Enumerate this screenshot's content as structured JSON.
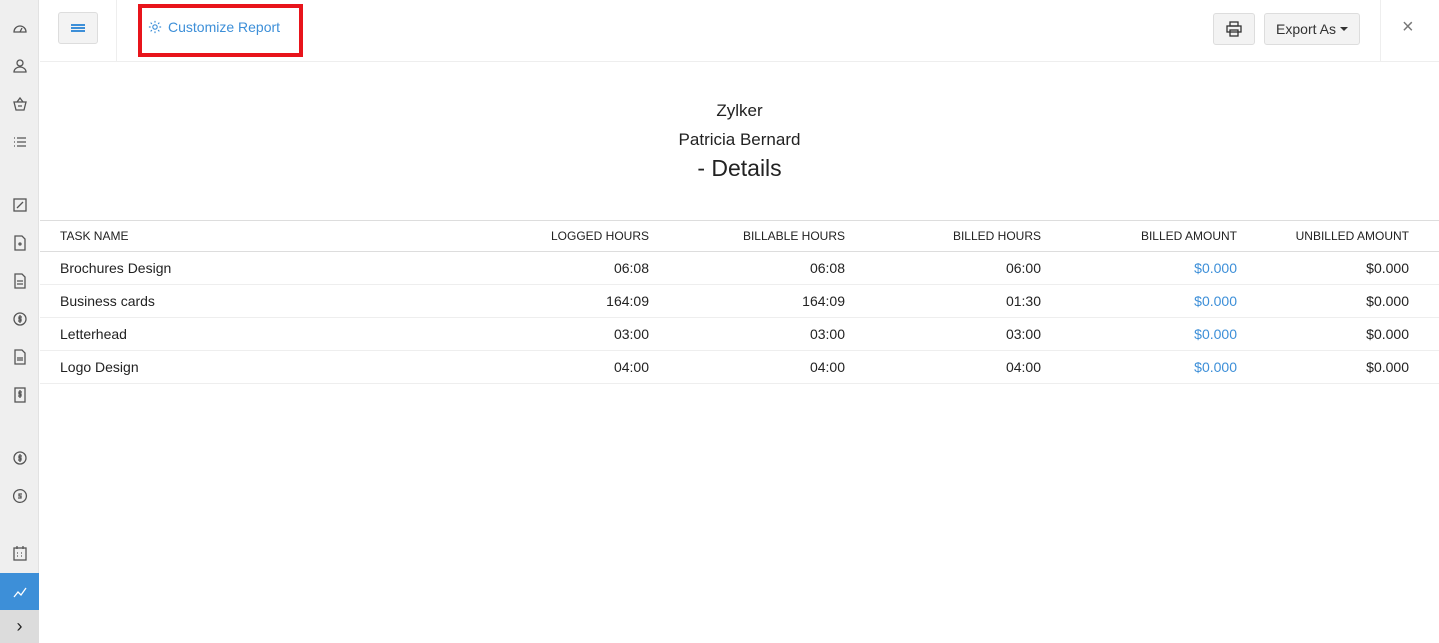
{
  "sidebar": {
    "icons": [
      "dashboard-icon",
      "contacts-icon",
      "items-icon",
      "list-icon",
      "quotes-icon",
      "sales-order-icon",
      "invoice-icon",
      "payments-received-icon",
      "recurring-invoice-icon",
      "credit-notes-icon",
      "expenses-icon",
      "recurring-expenses-icon",
      "timesheet-icon",
      "reports-icon"
    ],
    "active": "reports-icon",
    "accent": "#3d8fd8"
  },
  "toolbar": {
    "customize_label": "Customize Report",
    "export_label": "Export As",
    "close_label": "×"
  },
  "report": {
    "organization": "Zylker",
    "customer": "Patricia Bernard",
    "title": "- Details"
  },
  "table": {
    "columns": [
      "TASK NAME",
      "LOGGED HOURS",
      "BILLABLE HOURS",
      "BILLED HOURS",
      "BILLED AMOUNT",
      "UNBILLED AMOUNT"
    ],
    "rows": [
      [
        "Brochures Design",
        "06:08",
        "06:08",
        "06:00",
        "$0.000",
        "$0.000"
      ],
      [
        "Business cards",
        "164:09",
        "164:09",
        "01:30",
        "$0.000",
        "$0.000"
      ],
      [
        "Letterhead",
        "03:00",
        "03:00",
        "03:00",
        "$0.000",
        "$0.000"
      ],
      [
        "Logo Design",
        "04:00",
        "04:00",
        "04:00",
        "$0.000",
        "$0.000"
      ]
    ]
  }
}
